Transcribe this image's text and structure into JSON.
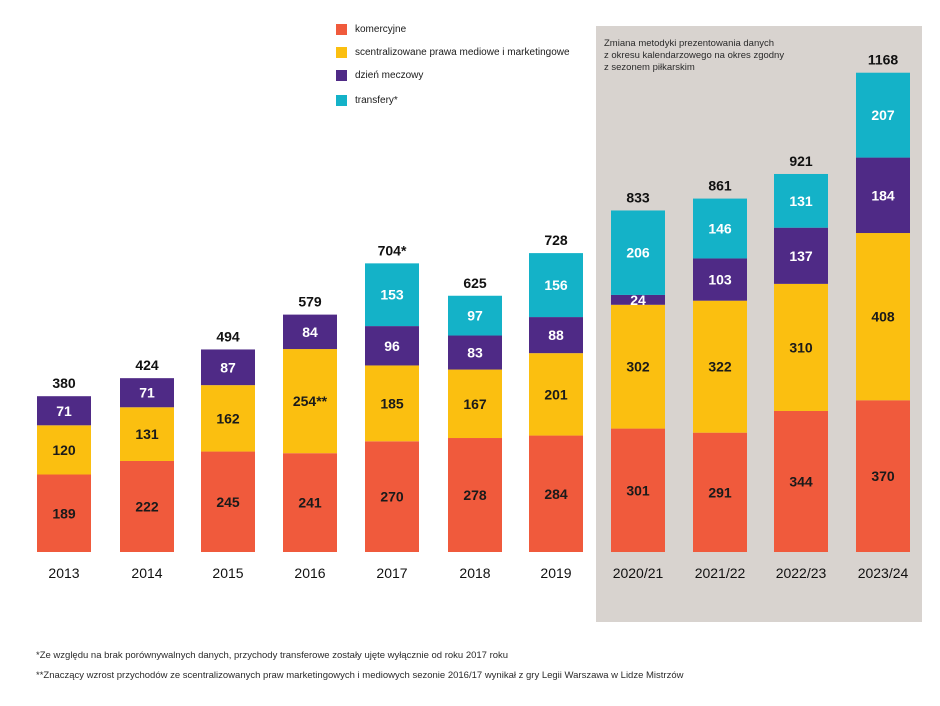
{
  "chart_data": {
    "type": "bar",
    "stacked": true,
    "categories": [
      "2013",
      "2014",
      "2015",
      "2016",
      "2017",
      "2018",
      "2019",
      "2020/21",
      "2021/22",
      "2022/23",
      "2023/24"
    ],
    "series": [
      {
        "name": "komercyjne",
        "color": "#f05a3c",
        "values": [
          189,
          222,
          245,
          241,
          270,
          278,
          284,
          301,
          291,
          344,
          370
        ],
        "labels": [
          "189",
          "222",
          "245",
          "241",
          "270",
          "278",
          "284",
          "301",
          "291",
          "344",
          "370"
        ]
      },
      {
        "name": "scentralizowane prawa mediowe i marketingowe",
        "color": "#fbbf10",
        "values": [
          120,
          131,
          162,
          254,
          185,
          167,
          201,
          302,
          322,
          310,
          408
        ],
        "labels": [
          "120",
          "131",
          "162",
          "254**",
          "185",
          "167",
          "201",
          "302",
          "322",
          "310",
          "408"
        ]
      },
      {
        "name": "dzień meczowy",
        "color": "#4f2a86",
        "values": [
          71,
          71,
          87,
          84,
          96,
          83,
          88,
          24,
          103,
          137,
          184
        ],
        "labels": [
          "71",
          "71",
          "87",
          "84",
          "96",
          "83",
          "88",
          "24",
          "103",
          "137",
          "184"
        ]
      },
      {
        "name": "transfery*",
        "color": "#14b2c8",
        "values": [
          0,
          0,
          0,
          0,
          153,
          97,
          156,
          206,
          146,
          131,
          207
        ],
        "labels": [
          "",
          "",
          "",
          "",
          "153",
          "97",
          "156",
          "206",
          "146",
          "131",
          "207"
        ]
      }
    ],
    "totals": [
      "380",
      "424",
      "494",
      "579",
      "704*",
      "625",
      "728",
      "833",
      "861",
      "921",
      "1168"
    ],
    "highlight_note": "Zmiana metodyki prezentowania danych\nz okresu kalendarzowego na okres zgodny\nz sezonem piłkarskim",
    "highlight_from_index": 7,
    "highlight_color": "#d8d3cf",
    "ylim": [
      0,
      1200
    ],
    "legend_position": "top-center"
  },
  "footnotes": [
    "*Ze względu na brak porównywalnych danych, przychody transferowe zostały ujęte wyłącznie od roku 2017 roku",
    "**Znaczący wzrost przychodów ze scentralizowanych praw marketingowych i mediowych sezonie 2016/17 wynikał z gry Legii Warszawa w Lidze Mistrzów"
  ]
}
